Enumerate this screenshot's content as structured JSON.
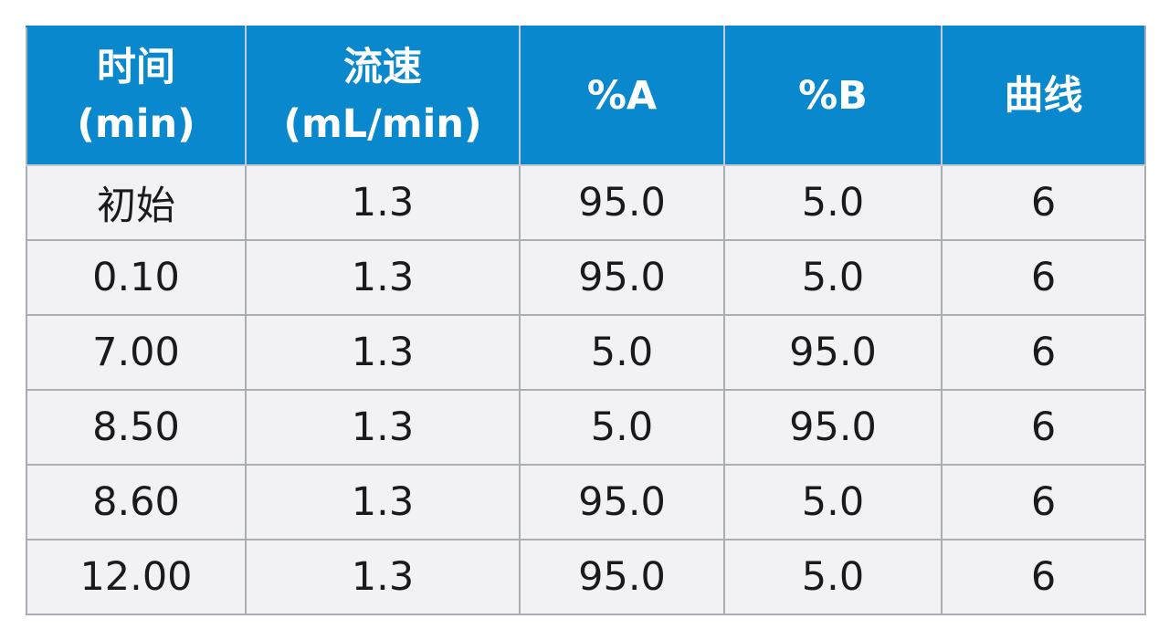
{
  "table": {
    "headers": [
      {
        "line1": "时间",
        "line2": "(min)"
      },
      {
        "line1": "流速",
        "line2": "(mL/min)"
      },
      {
        "line1": "%A",
        "line2": ""
      },
      {
        "line1": "%B",
        "line2": ""
      },
      {
        "line1": "曲线",
        "line2": ""
      }
    ],
    "rows": [
      [
        "初始",
        "1.3",
        "95.0",
        "5.0",
        "6"
      ],
      [
        "0.10",
        "1.3",
        "95.0",
        "5.0",
        "6"
      ],
      [
        "7.00",
        "1.3",
        "5.0",
        "95.0",
        "6"
      ],
      [
        "8.50",
        "1.3",
        "5.0",
        "95.0",
        "6"
      ],
      [
        "8.60",
        "1.3",
        "95.0",
        "5.0",
        "6"
      ],
      [
        "12.00",
        "1.3",
        "95.0",
        "5.0",
        "6"
      ]
    ],
    "colors": {
      "header_background": "#0a88cd",
      "header_text": "#ffffff",
      "cell_background": "#f2f2f5",
      "border": "#a9aeb5"
    }
  }
}
